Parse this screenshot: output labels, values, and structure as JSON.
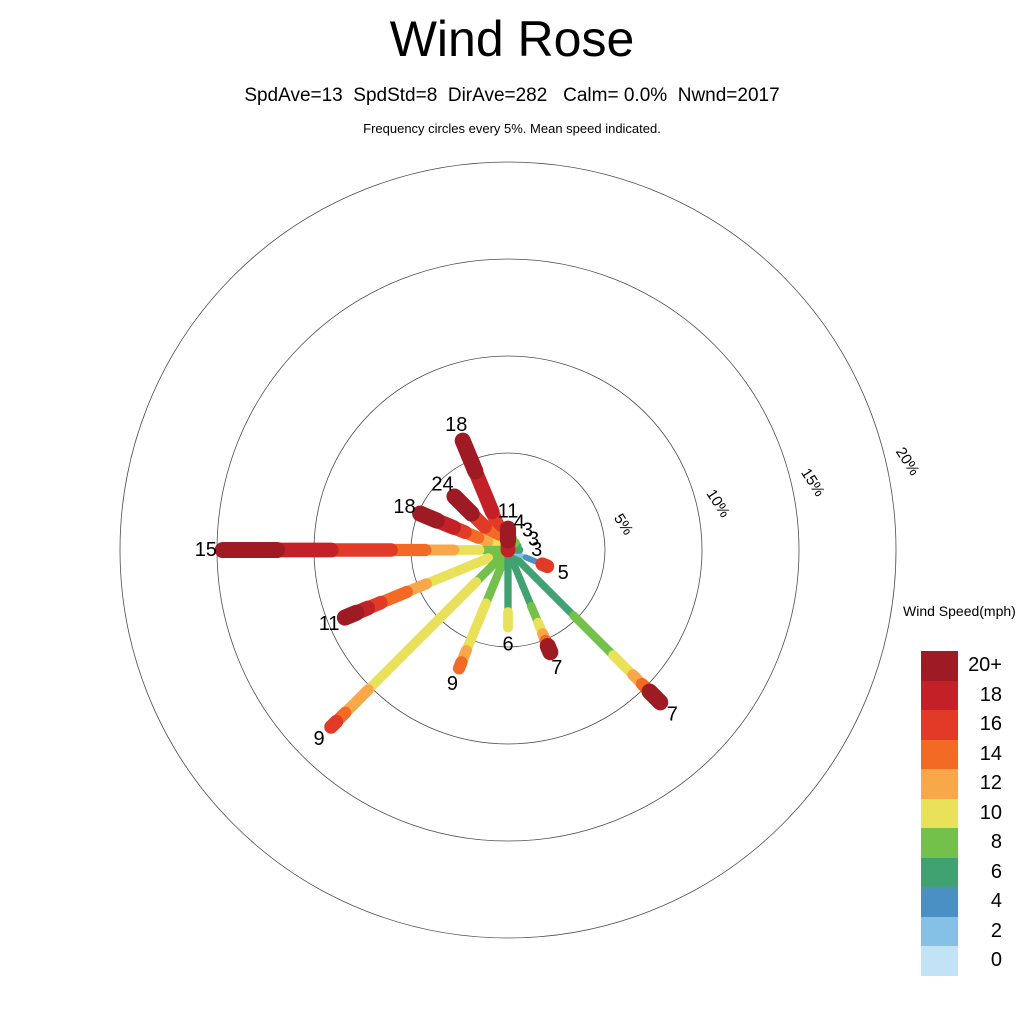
{
  "chart_data": {
    "type": "windrose",
    "title": "Wind Rose",
    "stats_line": "SpdAve=13  SpdStd=8  DirAve=282   Calm= 0.0%  Nwnd=2017",
    "subtitle": "Frequency circles every 5%. Mean speed indicated.",
    "stats": {
      "spd_ave": 13,
      "spd_std": 8,
      "dir_ave": 282,
      "calm_pct": 0.0,
      "n_wind": 2017
    },
    "units": "mph",
    "frequency_circles_pct": [
      5,
      10,
      15,
      20
    ],
    "circle_labels": [
      "5%",
      "10%",
      "15%",
      "20%"
    ],
    "legend": {
      "title": "Wind Speed(mph)",
      "bins": [
        {
          "label": "20+",
          "speed": 20,
          "color": "#9e1b23"
        },
        {
          "label": "18",
          "speed": 18,
          "color": "#c32127"
        },
        {
          "label": "16",
          "speed": 16,
          "color": "#e13b27"
        },
        {
          "label": "14",
          "speed": 14,
          "color": "#f26a24"
        },
        {
          "label": "12",
          "speed": 12,
          "color": "#f8a848"
        },
        {
          "label": "10",
          "speed": 10,
          "color": "#e8e159"
        },
        {
          "label": "8",
          "speed": 8,
          "color": "#73c04b"
        },
        {
          "label": "6",
          "speed": 6,
          "color": "#41a271"
        },
        {
          "label": "4",
          "speed": 4,
          "color": "#4b90c4"
        },
        {
          "label": "2",
          "speed": 2,
          "color": "#85c0e7"
        },
        {
          "label": "0",
          "speed": 0,
          "color": "#c2e3f6"
        }
      ]
    },
    "directions": [
      {
        "dir": "N",
        "azimuth_deg": 0,
        "frequency_pct": 1.1,
        "mean_speed": "11",
        "segments": [
          {
            "speed": 18,
            "from": 0,
            "to": 0.45
          },
          {
            "speed": 20,
            "from": 0.45,
            "to": 1
          }
        ]
      },
      {
        "dir": "NNE",
        "azimuth_deg": 22.5,
        "frequency_pct": 0.65,
        "mean_speed": "4",
        "segments": [
          {
            "speed": 8,
            "from": 0,
            "to": 1
          }
        ]
      },
      {
        "dir": "NE",
        "azimuth_deg": 45,
        "frequency_pct": 0.55,
        "mean_speed": "3",
        "segments": [
          {
            "speed": 8,
            "from": 0,
            "to": 1
          }
        ]
      },
      {
        "dir": "ENE",
        "azimuth_deg": 67.5,
        "frequency_pct": 0.55,
        "mean_speed": "3",
        "segments": [
          {
            "speed": 6,
            "from": 0,
            "to": 1
          }
        ]
      },
      {
        "dir": "E",
        "azimuth_deg": 90,
        "frequency_pct": 0.6,
        "mean_speed": "3",
        "segments": [
          {
            "speed": 6,
            "from": 0,
            "to": 1
          }
        ]
      },
      {
        "dir": "ESE",
        "azimuth_deg": 112.5,
        "frequency_pct": 2.2,
        "mean_speed": "5",
        "segments": [
          {
            "speed": 2,
            "from": 0,
            "to": 0.45
          },
          {
            "speed": 4,
            "from": 0.45,
            "to": 0.87
          },
          {
            "speed": 16,
            "from": 0.87,
            "to": 1
          }
        ]
      },
      {
        "dir": "SE",
        "azimuth_deg": 135,
        "frequency_pct": 11.1,
        "mean_speed": "7",
        "segments": [
          {
            "speed": 6,
            "from": 0,
            "to": 0.43
          },
          {
            "speed": 8,
            "from": 0.43,
            "to": 0.69
          },
          {
            "speed": 10,
            "from": 0.69,
            "to": 0.82
          },
          {
            "speed": 12,
            "from": 0.82,
            "to": 0.88
          },
          {
            "speed": 14,
            "from": 0.88,
            "to": 0.93
          },
          {
            "speed": 20,
            "from": 0.93,
            "to": 1
          }
        ]
      },
      {
        "dir": "SSE",
        "azimuth_deg": 157.5,
        "frequency_pct": 5.7,
        "mean_speed": "7",
        "segments": [
          {
            "speed": 6,
            "from": 0,
            "to": 0.55
          },
          {
            "speed": 8,
            "from": 0.55,
            "to": 0.71
          },
          {
            "speed": 10,
            "from": 0.71,
            "to": 0.82
          },
          {
            "speed": 12,
            "from": 0.82,
            "to": 0.89
          },
          {
            "speed": 14,
            "from": 0.89,
            "to": 0.94
          },
          {
            "speed": 20,
            "from": 0.94,
            "to": 1
          }
        ]
      },
      {
        "dir": "S",
        "azimuth_deg": 180,
        "frequency_pct": 4.0,
        "mean_speed": "6",
        "segments": [
          {
            "speed": 6,
            "from": 0,
            "to": 0.8
          },
          {
            "speed": 10,
            "from": 0.8,
            "to": 1
          }
        ]
      },
      {
        "dir": "SSW",
        "azimuth_deg": 202.5,
        "frequency_pct": 6.6,
        "mean_speed": "9",
        "segments": [
          {
            "speed": 8,
            "from": 0,
            "to": 0.45
          },
          {
            "speed": 10,
            "from": 0.45,
            "to": 0.85
          },
          {
            "speed": 12,
            "from": 0.85,
            "to": 0.95
          },
          {
            "speed": 14,
            "from": 0.95,
            "to": 1
          }
        ]
      },
      {
        "dir": "SW",
        "azimuth_deg": 225,
        "frequency_pct": 12.9,
        "mean_speed": "9",
        "segments": [
          {
            "speed": 8,
            "from": 0,
            "to": 0.18
          },
          {
            "speed": 10,
            "from": 0.18,
            "to": 0.79
          },
          {
            "speed": 12,
            "from": 0.79,
            "to": 0.92
          },
          {
            "speed": 14,
            "from": 0.92,
            "to": 0.97
          },
          {
            "speed": 16,
            "from": 0.97,
            "to": 1
          }
        ]
      },
      {
        "dir": "WSW",
        "azimuth_deg": 247.5,
        "frequency_pct": 9.1,
        "mean_speed": "11",
        "segments": [
          {
            "speed": 8,
            "from": 0,
            "to": 0.12
          },
          {
            "speed": 10,
            "from": 0.12,
            "to": 0.5
          },
          {
            "speed": 12,
            "from": 0.5,
            "to": 0.62
          },
          {
            "speed": 14,
            "from": 0.62,
            "to": 0.78
          },
          {
            "speed": 16,
            "from": 0.78,
            "to": 0.86
          },
          {
            "speed": 18,
            "from": 0.86,
            "to": 0.93
          },
          {
            "speed": 20,
            "from": 0.93,
            "to": 1
          }
        ]
      },
      {
        "dir": "W",
        "azimuth_deg": 270,
        "frequency_pct": 14.7,
        "mean_speed": "15",
        "segments": [
          {
            "speed": 8,
            "from": 0,
            "to": 0.1
          },
          {
            "speed": 10,
            "from": 0.1,
            "to": 0.19
          },
          {
            "speed": 12,
            "from": 0.19,
            "to": 0.29
          },
          {
            "speed": 14,
            "from": 0.29,
            "to": 0.41
          },
          {
            "speed": 16,
            "from": 0.41,
            "to": 0.62
          },
          {
            "speed": 18,
            "from": 0.62,
            "to": 0.81
          },
          {
            "speed": 20,
            "from": 0.81,
            "to": 1
          }
        ]
      },
      {
        "dir": "WNW",
        "azimuth_deg": 292.5,
        "frequency_pct": 4.9,
        "mean_speed": "18",
        "segments": [
          {
            "speed": 8,
            "from": 0,
            "to": 0.12
          },
          {
            "speed": 10,
            "from": 0.12,
            "to": 0.23
          },
          {
            "speed": 12,
            "from": 0.23,
            "to": 0.34
          },
          {
            "speed": 14,
            "from": 0.34,
            "to": 0.49
          },
          {
            "speed": 16,
            "from": 0.49,
            "to": 0.62
          },
          {
            "speed": 18,
            "from": 0.62,
            "to": 0.81
          },
          {
            "speed": 20,
            "from": 0.81,
            "to": 1
          }
        ]
      },
      {
        "dir": "NW",
        "azimuth_deg": 315,
        "frequency_pct": 3.9,
        "mean_speed": "24",
        "segments": [
          {
            "speed": 8,
            "from": 0,
            "to": 0.12
          },
          {
            "speed": 12,
            "from": 0.12,
            "to": 0.25
          },
          {
            "speed": 14,
            "from": 0.25,
            "to": 0.43
          },
          {
            "speed": 16,
            "from": 0.43,
            "to": 0.68
          },
          {
            "speed": 20,
            "from": 0.68,
            "to": 1
          }
        ]
      },
      {
        "dir": "NNW",
        "azimuth_deg": 337.5,
        "frequency_pct": 6.1,
        "mean_speed": "18",
        "segments": [
          {
            "speed": 10,
            "from": 0,
            "to": 0.06
          },
          {
            "speed": 12,
            "from": 0.06,
            "to": 0.13
          },
          {
            "speed": 14,
            "from": 0.13,
            "to": 0.23
          },
          {
            "speed": 16,
            "from": 0.23,
            "to": 0.35
          },
          {
            "speed": 18,
            "from": 0.35,
            "to": 0.72
          },
          {
            "speed": 20,
            "from": 0.72,
            "to": 1
          }
        ]
      }
    ]
  }
}
